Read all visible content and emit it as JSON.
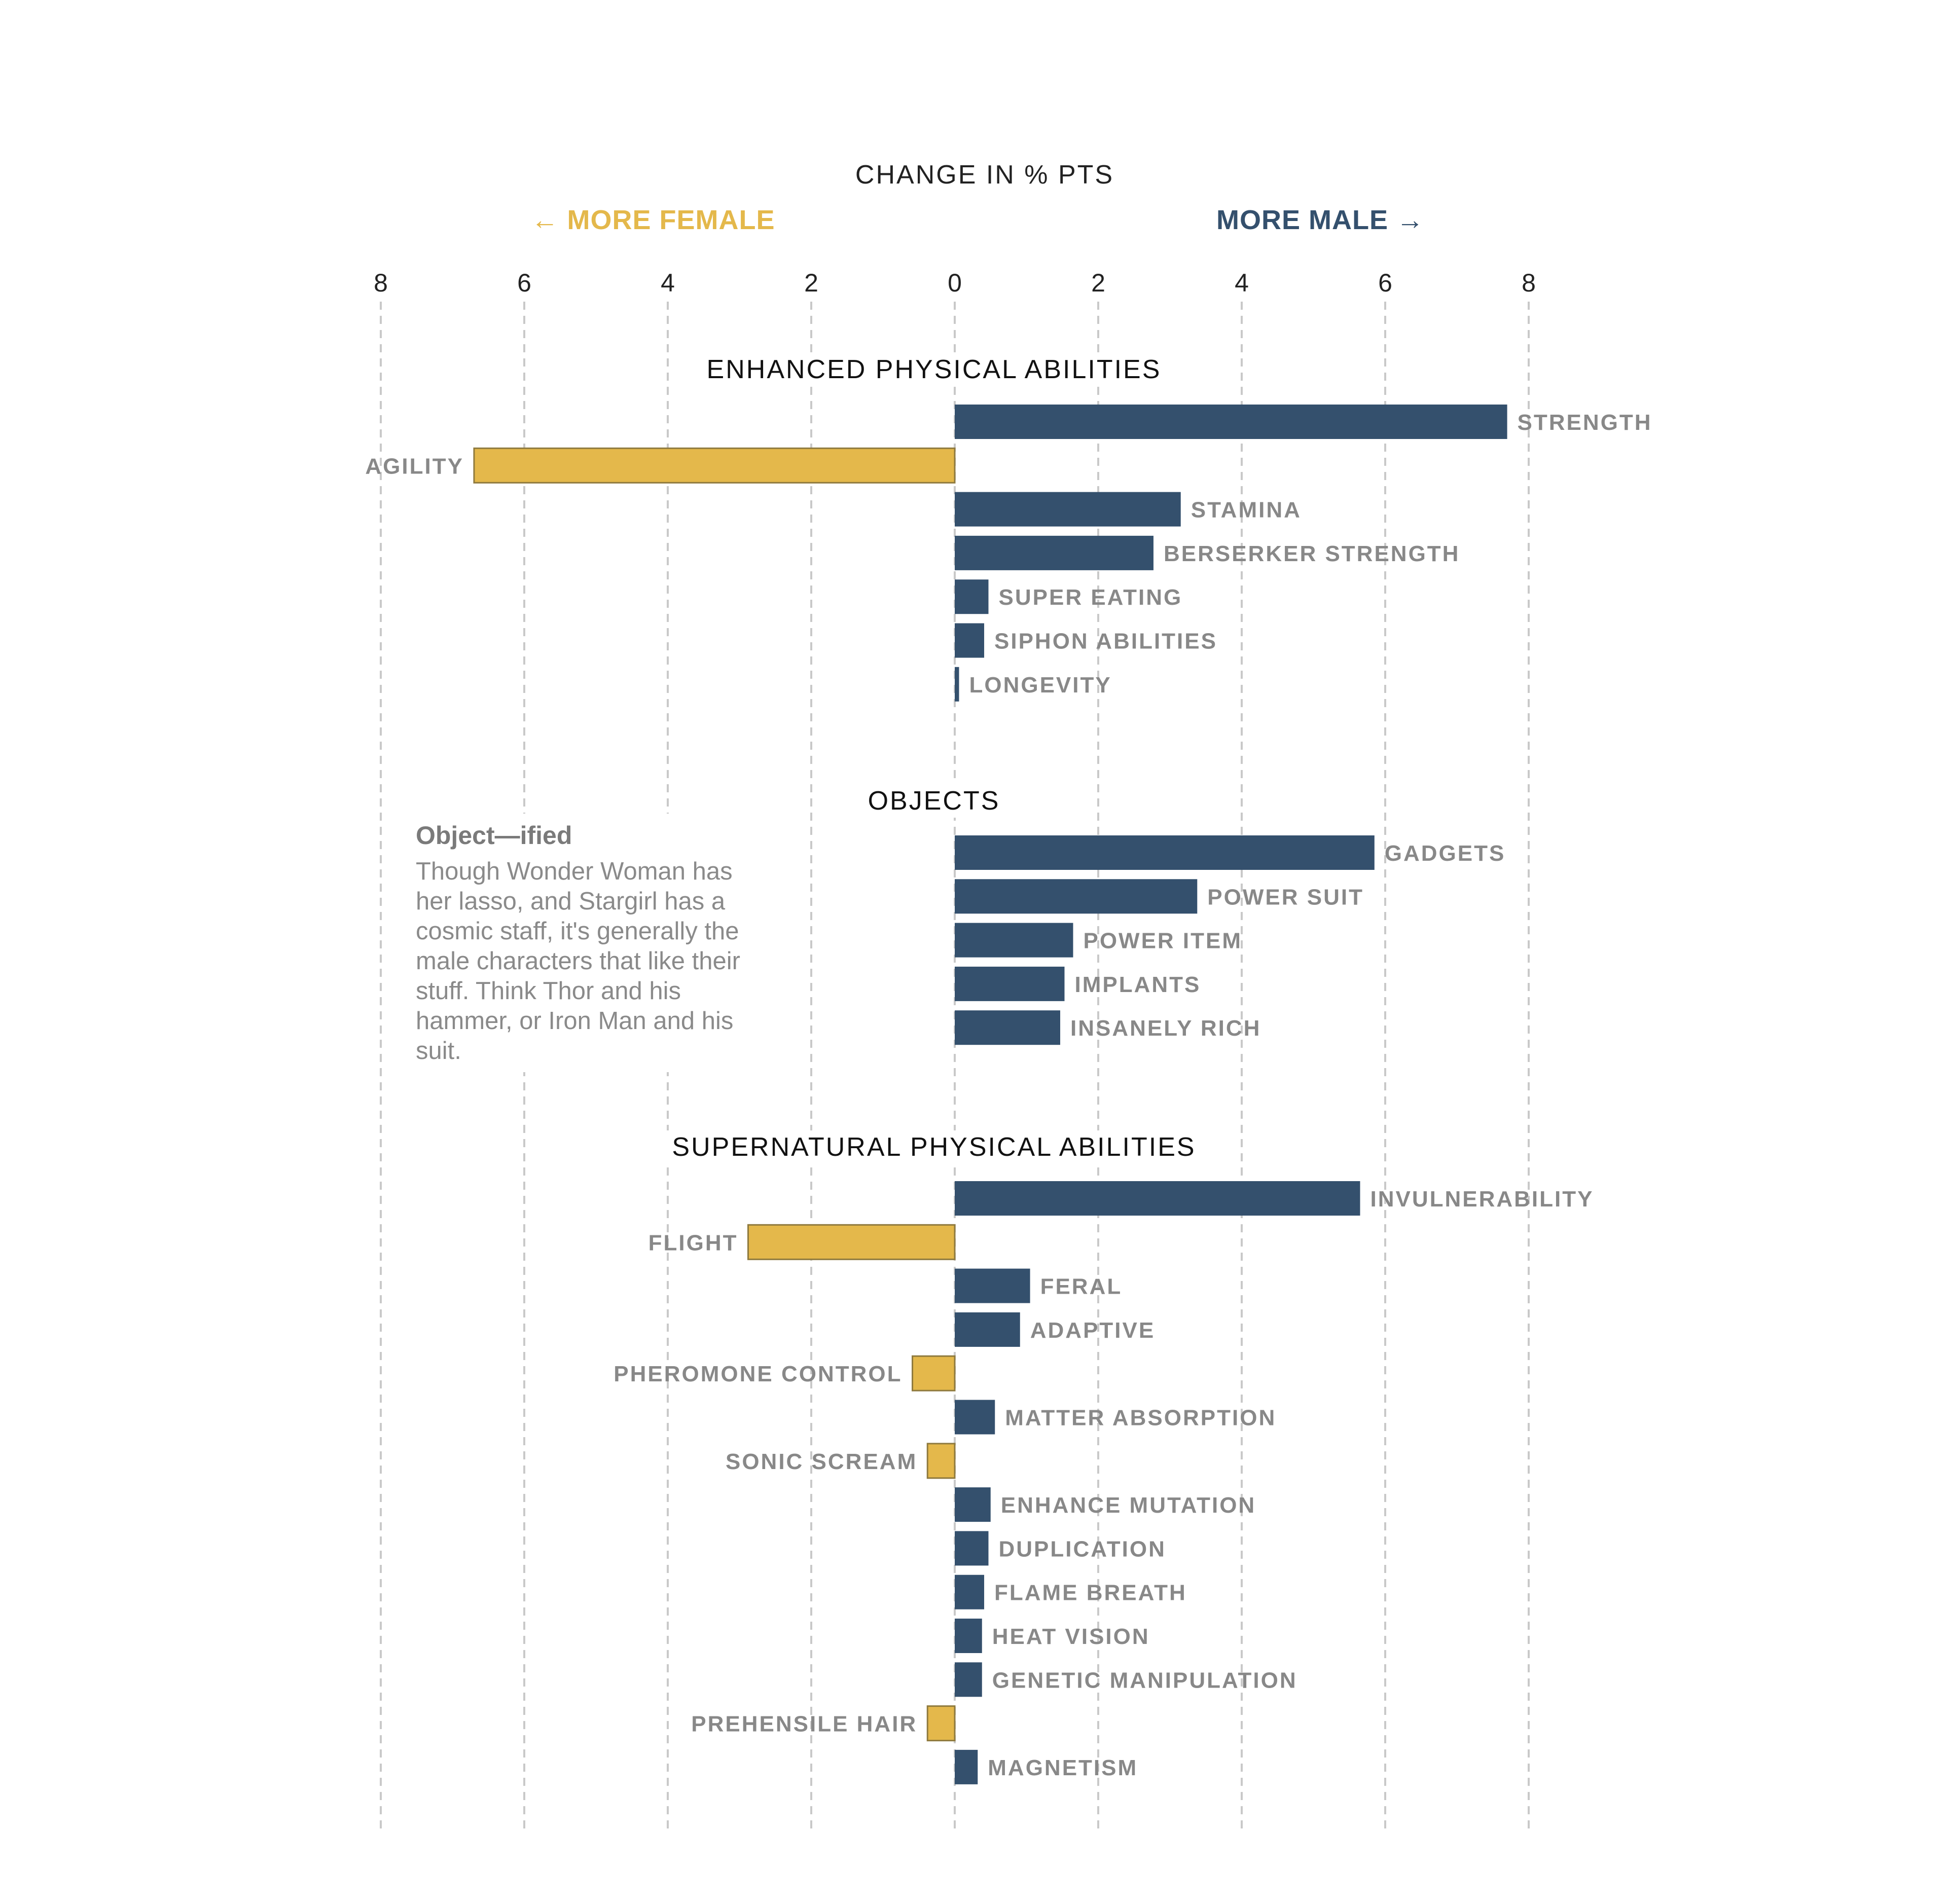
{
  "chart_data": {
    "type": "bar",
    "orientation": "horizontal",
    "title": "CHANGE IN % PTS",
    "direction_labels": {
      "female": "← MORE FEMALE",
      "male": "MORE MALE →"
    },
    "x_ticks": [
      "8",
      "6",
      "4",
      "2",
      "0",
      "2",
      "4",
      "6",
      "8"
    ],
    "xlim": [
      -8,
      8
    ],
    "grid": "vertical dashed",
    "colors": {
      "male": "#34506d",
      "female": "#e4b84b",
      "female_border": "#8f7a3e"
    },
    "sections": [
      {
        "title": "ENHANCED PHYSICAL ABILITIES",
        "bars": [
          {
            "label": "STRENGTH",
            "value": 7.7
          },
          {
            "label": "AGILITY",
            "value": -6.7
          },
          {
            "label": "STAMINA",
            "value": 3.15
          },
          {
            "label": "BERSERKER STRENGTH",
            "value": 2.77
          },
          {
            "label": "SUPER EATING",
            "value": 0.47
          },
          {
            "label": "SIPHON ABILITIES",
            "value": 0.41
          },
          {
            "label": "LONGEVITY",
            "value": 0.06
          }
        ]
      },
      {
        "title": "OBJECTS",
        "bars": [
          {
            "label": "GADGETS",
            "value": 5.85
          },
          {
            "label": "POWER SUIT",
            "value": 3.38
          },
          {
            "label": "POWER ITEM",
            "value": 1.65
          },
          {
            "label": "IMPLANTS",
            "value": 1.53
          },
          {
            "label": "INSANELY RICH",
            "value": 1.47
          }
        ]
      },
      {
        "title": "SUPERNATURAL PHYSICAL ABILITIES",
        "bars": [
          {
            "label": "INVULNERABILITY",
            "value": 5.65
          },
          {
            "label": "FLIGHT",
            "value": -2.88
          },
          {
            "label": "FERAL",
            "value": 1.05
          },
          {
            "label": "ADAPTIVE",
            "value": 0.91
          },
          {
            "label": "PHEROMONE CONTROL",
            "value": -0.59
          },
          {
            "label": "MATTER ABSORPTION",
            "value": 0.56
          },
          {
            "label": "SONIC SCREAM",
            "value": -0.38
          },
          {
            "label": "ENHANCE MUTATION",
            "value": 0.5
          },
          {
            "label": "DUPLICATION",
            "value": 0.47
          },
          {
            "label": "FLAME BREATH",
            "value": 0.41
          },
          {
            "label": "HEAT VISION",
            "value": 0.38
          },
          {
            "label": "GENETIC MANIPULATION",
            "value": 0.38
          },
          {
            "label": "PREHENSILE HAIR",
            "value": -0.38
          },
          {
            "label": "MAGNETISM",
            "value": 0.32
          }
        ]
      }
    ]
  },
  "annotation": {
    "title": "Object—ified",
    "lines": [
      "Though Wonder Woman has",
      "her lasso, and Stargirl has a",
      "cosmic staff, it's generally the",
      "male characters that like their",
      "stuff. Think Thor and his",
      "hammer, or Iron Man and his",
      "suit."
    ]
  }
}
